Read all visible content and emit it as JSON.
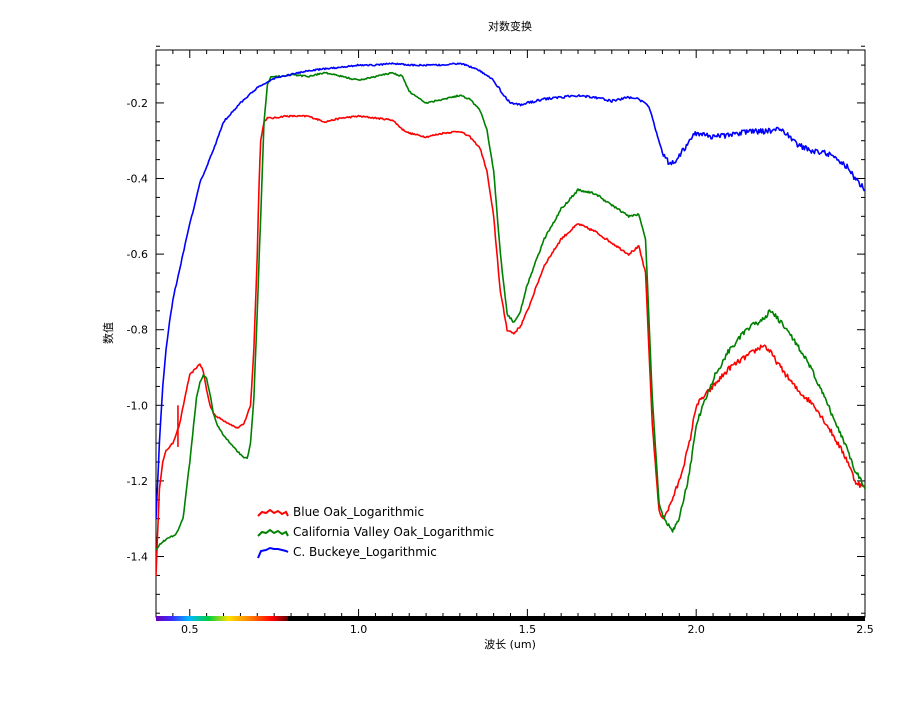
{
  "chart_data": {
    "type": "line",
    "title": "对数变换",
    "xlabel": "波长 (um)",
    "ylabel": "数值",
    "xlim": [
      0.4,
      2.5
    ],
    "ylim": [
      -1.56,
      -0.06
    ],
    "xticks": [
      0.5,
      1.0,
      1.5,
      2.0,
      2.5
    ],
    "xtick_labels": [
      "0.5",
      "1.0",
      "1.5",
      "2.0",
      "2.5"
    ],
    "yticks": [
      -0.2,
      -0.4,
      -0.6,
      -0.8,
      -1.0,
      -1.2,
      -1.4
    ],
    "ytick_labels": [
      "-0.2",
      "-0.4",
      "-0.6",
      "-0.8",
      "-1.0",
      "-1.2",
      "-1.4"
    ],
    "grid": false,
    "legend_position": "bottom-left",
    "wavelength_color_bar": true,
    "series": [
      {
        "name": "Blue Oak_Logarithmic",
        "color": "#ff0000",
        "x": [
          0.4,
          0.41,
          0.42,
          0.43,
          0.44,
          0.45,
          0.47,
          0.49,
          0.5,
          0.52,
          0.53,
          0.54,
          0.55,
          0.56,
          0.57,
          0.58,
          0.6,
          0.62,
          0.64,
          0.66,
          0.68,
          0.69,
          0.7,
          0.705,
          0.71,
          0.72,
          0.73,
          0.74,
          0.75,
          0.78,
          0.8,
          0.85,
          0.9,
          0.95,
          1.0,
          1.05,
          1.1,
          1.13,
          1.15,
          1.2,
          1.25,
          1.3,
          1.33,
          1.36,
          1.38,
          1.4,
          1.42,
          1.44,
          1.46,
          1.48,
          1.5,
          1.55,
          1.6,
          1.65,
          1.7,
          1.75,
          1.8,
          1.83,
          1.85,
          1.87,
          1.89,
          1.9,
          1.92,
          1.95,
          1.98,
          2.0,
          2.05,
          2.1,
          2.15,
          2.2,
          2.22,
          2.25,
          2.3,
          2.35,
          2.4,
          2.45,
          2.47,
          2.5
        ],
        "y": [
          -1.45,
          -1.22,
          -1.15,
          -1.12,
          -1.11,
          -1.1,
          -1.05,
          -0.96,
          -0.92,
          -0.9,
          -0.89,
          -0.91,
          -0.96,
          -1.0,
          -1.02,
          -1.03,
          -1.04,
          -1.05,
          -1.06,
          -1.05,
          -1.0,
          -0.85,
          -0.6,
          -0.42,
          -0.3,
          -0.25,
          -0.24,
          -0.24,
          -0.24,
          -0.235,
          -0.235,
          -0.235,
          -0.25,
          -0.24,
          -0.235,
          -0.24,
          -0.245,
          -0.27,
          -0.28,
          -0.29,
          -0.28,
          -0.275,
          -0.29,
          -0.32,
          -0.38,
          -0.5,
          -0.7,
          -0.8,
          -0.81,
          -0.79,
          -0.75,
          -0.63,
          -0.56,
          -0.52,
          -0.54,
          -0.57,
          -0.6,
          -0.58,
          -0.65,
          -1.05,
          -1.28,
          -1.3,
          -1.27,
          -1.2,
          -1.1,
          -1.0,
          -0.95,
          -0.9,
          -0.87,
          -0.84,
          -0.86,
          -0.9,
          -0.96,
          -1.0,
          -1.07,
          -1.15,
          -1.2,
          -1.22
        ]
      },
      {
        "name": "California Valley Oak_Logarithmic",
        "color": "#008000",
        "x": [
          0.4,
          0.42,
          0.44,
          0.46,
          0.48,
          0.5,
          0.52,
          0.53,
          0.54,
          0.55,
          0.56,
          0.57,
          0.58,
          0.6,
          0.62,
          0.64,
          0.66,
          0.67,
          0.68,
          0.69,
          0.7,
          0.71,
          0.72,
          0.73,
          0.74,
          0.75,
          0.77,
          0.8,
          0.85,
          0.9,
          0.95,
          1.0,
          1.05,
          1.1,
          1.13,
          1.15,
          1.2,
          1.25,
          1.3,
          1.33,
          1.36,
          1.38,
          1.4,
          1.42,
          1.44,
          1.46,
          1.48,
          1.5,
          1.55,
          1.6,
          1.65,
          1.7,
          1.75,
          1.8,
          1.83,
          1.85,
          1.87,
          1.89,
          1.91,
          1.93,
          1.95,
          1.98,
          2.0,
          2.05,
          2.1,
          2.15,
          2.2,
          2.22,
          2.25,
          2.3,
          2.35,
          2.4,
          2.45,
          2.47,
          2.5
        ],
        "y": [
          -1.38,
          -1.36,
          -1.35,
          -1.34,
          -1.3,
          -1.15,
          -0.98,
          -0.94,
          -0.92,
          -0.93,
          -0.97,
          -1.02,
          -1.05,
          -1.08,
          -1.1,
          -1.12,
          -1.14,
          -1.14,
          -1.1,
          -0.98,
          -0.75,
          -0.5,
          -0.25,
          -0.15,
          -0.13,
          -0.13,
          -0.13,
          -0.125,
          -0.13,
          -0.12,
          -0.13,
          -0.14,
          -0.13,
          -0.12,
          -0.13,
          -0.17,
          -0.2,
          -0.19,
          -0.18,
          -0.19,
          -0.22,
          -0.27,
          -0.38,
          -0.6,
          -0.76,
          -0.78,
          -0.75,
          -0.68,
          -0.56,
          -0.48,
          -0.43,
          -0.44,
          -0.47,
          -0.5,
          -0.495,
          -0.56,
          -0.98,
          -1.26,
          -1.31,
          -1.33,
          -1.3,
          -1.18,
          -1.05,
          -0.93,
          -0.85,
          -0.8,
          -0.77,
          -0.75,
          -0.78,
          -0.84,
          -0.92,
          -1.02,
          -1.12,
          -1.17,
          -1.22
        ]
      },
      {
        "name": "C. Buckeye_Logarithmic",
        "color": "#0000ff",
        "x": [
          0.4,
          0.41,
          0.42,
          0.43,
          0.44,
          0.45,
          0.46,
          0.48,
          0.5,
          0.52,
          0.53,
          0.55,
          0.58,
          0.6,
          0.63,
          0.65,
          0.7,
          0.75,
          0.8,
          0.85,
          0.9,
          0.95,
          1.0,
          1.05,
          1.1,
          1.15,
          1.2,
          1.25,
          1.3,
          1.35,
          1.4,
          1.43,
          1.45,
          1.48,
          1.5,
          1.55,
          1.6,
          1.65,
          1.7,
          1.75,
          1.8,
          1.83,
          1.86,
          1.88,
          1.9,
          1.92,
          1.93,
          1.95,
          1.98,
          2.0,
          2.05,
          2.1,
          2.15,
          2.2,
          2.25,
          2.28,
          2.3,
          2.35,
          2.38,
          2.4,
          2.45,
          2.47,
          2.5
        ],
        "y": [
          -1.3,
          -1.1,
          -0.95,
          -0.85,
          -0.78,
          -0.72,
          -0.68,
          -0.6,
          -0.52,
          -0.45,
          -0.41,
          -0.37,
          -0.3,
          -0.25,
          -0.22,
          -0.2,
          -0.16,
          -0.135,
          -0.125,
          -0.115,
          -0.11,
          -0.105,
          -0.1,
          -0.1,
          -0.095,
          -0.1,
          -0.1,
          -0.1,
          -0.095,
          -0.11,
          -0.14,
          -0.18,
          -0.2,
          -0.205,
          -0.2,
          -0.19,
          -0.185,
          -0.18,
          -0.185,
          -0.195,
          -0.185,
          -0.19,
          -0.21,
          -0.27,
          -0.33,
          -0.36,
          -0.36,
          -0.34,
          -0.3,
          -0.28,
          -0.29,
          -0.285,
          -0.275,
          -0.275,
          -0.27,
          -0.29,
          -0.31,
          -0.33,
          -0.33,
          -0.34,
          -0.37,
          -0.4,
          -0.43
        ]
      }
    ]
  }
}
